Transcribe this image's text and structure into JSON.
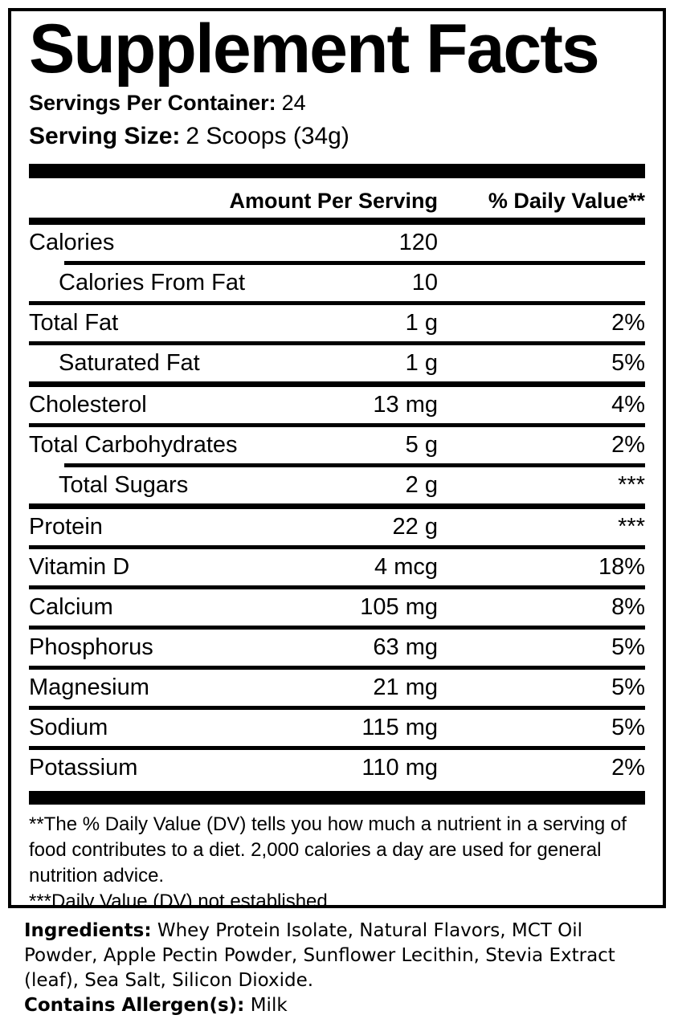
{
  "colors": {
    "text": "#000000",
    "background": "#ffffff",
    "rule": "#000000"
  },
  "label": {
    "title": "Supplement Facts",
    "servings_per_container": {
      "label": "Servings Per Container:",
      "value": "24"
    },
    "serving_size": {
      "label": "Serving Size:",
      "value": "2 Scoops (34g)"
    },
    "header": {
      "amount": "Amount Per Serving",
      "daily_value": "% Daily Value**"
    },
    "rows": [
      {
        "name": "Calories",
        "amount": "120",
        "dv": ""
      },
      {
        "name": "Calories From Fat",
        "amount": "10",
        "dv": ""
      },
      {
        "name": "Total Fat",
        "amount": "1 g",
        "dv": "2%"
      },
      {
        "name": "Saturated Fat",
        "amount": "1 g",
        "dv": "5%"
      },
      {
        "name": "Cholesterol",
        "amount": "13 mg",
        "dv": "4%"
      },
      {
        "name": "Total Carbohydrates",
        "amount": "5 g",
        "dv": "2%"
      },
      {
        "name": "Total Sugars",
        "amount": "2 g",
        "dv": "***"
      },
      {
        "name": "Protein",
        "amount": "22 g",
        "dv": "***"
      },
      {
        "name": "Vitamin D",
        "amount": "4 mcg",
        "dv": "18%"
      },
      {
        "name": "Calcium",
        "amount": "105 mg",
        "dv": "8%"
      },
      {
        "name": "Phosphorus",
        "amount": "63 mg",
        "dv": "5%"
      },
      {
        "name": "Magnesium",
        "amount": "21 mg",
        "dv": "5%"
      },
      {
        "name": "Sodium",
        "amount": "115 mg",
        "dv": "5%"
      },
      {
        "name": "Potassium",
        "amount": "110 mg",
        "dv": "2%"
      }
    ],
    "footnotes": {
      "daily_value_note": "**The % Daily Value (DV) tells you how much a nutrient in a serving of food contributes to a diet. 2,000 calories a day are used for general nutrition advice.",
      "not_established_note": "***Daily Value (DV) not established."
    },
    "ingredients": {
      "label": "Ingredients:",
      "value": "Whey Protein Isolate, Natural Flavors, MCT Oil Powder, Apple Pectin Powder, Sunflower Lecithin, Stevia Extract (leaf), Sea Salt, Silicon Dioxide."
    },
    "allergens": {
      "label": "Contains Allergen(s):",
      "value": "Milk"
    }
  }
}
